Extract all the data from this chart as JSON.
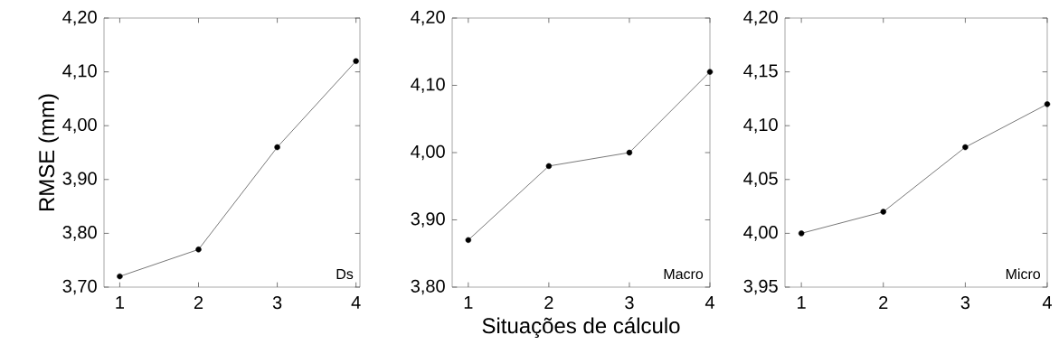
{
  "chart_data": [
    {
      "type": "line",
      "ylabel": "RMSE (mm)",
      "x": [
        1,
        2,
        3,
        4
      ],
      "values": [
        3.72,
        3.77,
        3.96,
        4.12
      ],
      "color": "#000000",
      "marker": "circle",
      "line_style": "solid",
      "xlim": [
        0.8,
        4.05
      ],
      "xticks": [
        1,
        2,
        3,
        4
      ],
      "ylim": [
        3.7,
        4.2
      ],
      "yticks": [
        {
          "value": 3.7,
          "label": "3,70"
        },
        {
          "value": 3.8,
          "label": "3,80"
        },
        {
          "value": 3.9,
          "label": "3,90"
        },
        {
          "value": 4.0,
          "label": "4,00"
        },
        {
          "value": 4.1,
          "label": "4,10"
        },
        {
          "value": 4.2,
          "label": "4,20"
        }
      ],
      "annotations": [
        "Ds"
      ]
    },
    {
      "type": "line",
      "xlabel": "Situações de cálculo",
      "x": [
        1,
        2,
        3,
        4
      ],
      "values": [
        3.87,
        3.98,
        4.0,
        4.12
      ],
      "color": "#000000",
      "marker": "circle",
      "line_style": "solid",
      "xlim": [
        0.8,
        4.0
      ],
      "xticks": [
        1,
        2,
        3,
        4
      ],
      "ylim": [
        3.8,
        4.2
      ],
      "yticks": [
        {
          "value": 3.8,
          "label": "3,80"
        },
        {
          "value": 3.9,
          "label": "3,90"
        },
        {
          "value": 4.0,
          "label": "4,00"
        },
        {
          "value": 4.1,
          "label": "4,10"
        },
        {
          "value": 4.2,
          "label": "4,20"
        }
      ],
      "annotations": [
        "Macro"
      ]
    },
    {
      "type": "line",
      "x": [
        1,
        2,
        3,
        4
      ],
      "values": [
        4.0,
        4.02,
        4.08,
        4.12
      ],
      "color": "#000000",
      "marker": "circle",
      "line_style": "solid",
      "xlim": [
        0.8,
        4.0
      ],
      "xticks": [
        1,
        2,
        3,
        4
      ],
      "ylim": [
        3.95,
        4.2
      ],
      "yticks": [
        {
          "value": 3.95,
          "label": "3,95"
        },
        {
          "value": 4.0,
          "label": "4,00"
        },
        {
          "value": 4.05,
          "label": "4,05"
        },
        {
          "value": 4.1,
          "label": "4,10"
        },
        {
          "value": 4.15,
          "label": "4,15"
        },
        {
          "value": 4.2,
          "label": "4,20"
        }
      ],
      "annotations": [
        "Micro"
      ]
    }
  ]
}
